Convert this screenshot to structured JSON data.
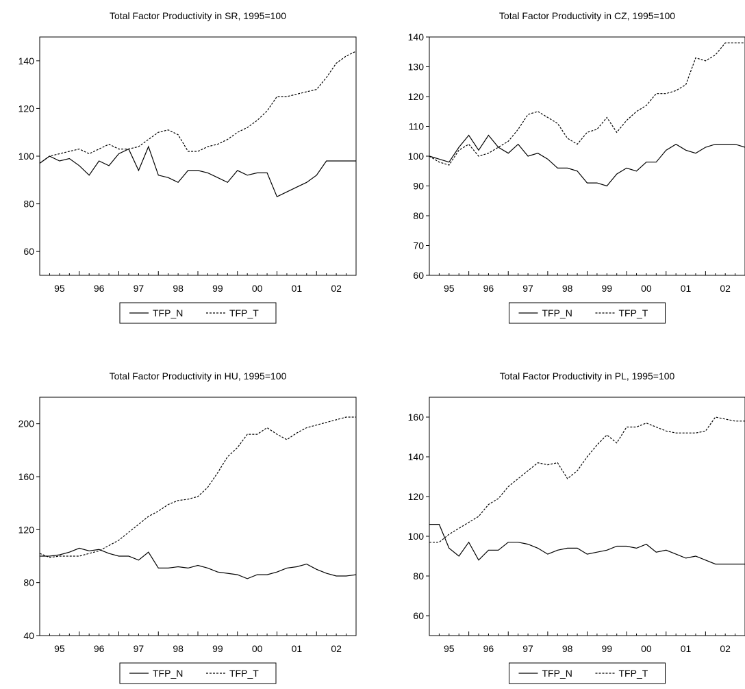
{
  "chart_data": [
    {
      "type": "line",
      "title": "Total Factor Productivity in SR, 1995=100",
      "xlabel": "",
      "ylabel": "",
      "x_range": [
        1995.0,
        2003.0
      ],
      "x_ticks": [
        {
          "label": "95",
          "at": 1995.5
        },
        {
          "label": "96",
          "at": 1996.5
        },
        {
          "label": "97",
          "at": 1997.5
        },
        {
          "label": "98",
          "at": 1998.5
        },
        {
          "label": "99",
          "at": 1999.5
        },
        {
          "label": "00",
          "at": 2000.5
        },
        {
          "label": "01",
          "at": 2001.5
        },
        {
          "label": "02",
          "at": 2002.5
        }
      ],
      "ylim": [
        50,
        150
      ],
      "y_ticks": [
        60,
        80,
        100,
        120,
        140
      ],
      "grid": false,
      "legend_position": "bottom",
      "series": [
        {
          "name": "TFP_N",
          "style": "solid",
          "x": [
            1995.0,
            1995.25,
            1995.5,
            1995.75,
            1996.0,
            1996.25,
            1996.5,
            1996.75,
            1997.0,
            1997.25,
            1997.5,
            1997.75,
            1998.0,
            1998.25,
            1998.5,
            1998.75,
            1999.0,
            1999.25,
            1999.5,
            1999.75,
            2000.0,
            2000.25,
            2000.5,
            2000.75,
            2001.0,
            2001.25,
            2001.5,
            2001.75,
            2002.0,
            2002.25,
            2002.5,
            2002.75,
            2003.0
          ],
          "y": [
            97,
            100,
            98,
            99,
            96,
            92,
            98,
            96,
            101,
            103,
            94,
            104,
            92,
            91,
            89,
            94,
            94,
            93,
            91,
            89,
            94,
            92,
            93,
            93,
            83,
            85,
            87,
            89,
            92,
            98,
            98,
            98,
            98
          ]
        },
        {
          "name": "TFP_T",
          "style": "dashed",
          "x": [
            1995.0,
            1995.25,
            1995.5,
            1995.75,
            1996.0,
            1996.25,
            1996.5,
            1996.75,
            1997.0,
            1997.25,
            1997.5,
            1997.75,
            1998.0,
            1998.25,
            1998.5,
            1998.75,
            1999.0,
            1999.25,
            1999.5,
            1999.75,
            2000.0,
            2000.25,
            2000.5,
            2000.75,
            2001.0,
            2001.25,
            2001.5,
            2001.75,
            2002.0,
            2002.25,
            2002.5,
            2002.75,
            2003.0
          ],
          "y": [
            97,
            100,
            101,
            102,
            103,
            101,
            103,
            105,
            103,
            103,
            104,
            107,
            110,
            111,
            109,
            102,
            102,
            104,
            105,
            107,
            110,
            112,
            115,
            119,
            125,
            125,
            126,
            127,
            128,
            133,
            139,
            142,
            144
          ]
        }
      ]
    },
    {
      "type": "line",
      "title": "Total Factor Productivity in CZ, 1995=100",
      "xlabel": "",
      "ylabel": "",
      "x_range": [
        1995.0,
        2003.0
      ],
      "x_ticks": [
        {
          "label": "95",
          "at": 1995.5
        },
        {
          "label": "96",
          "at": 1996.5
        },
        {
          "label": "97",
          "at": 1997.5
        },
        {
          "label": "98",
          "at": 1998.5
        },
        {
          "label": "99",
          "at": 1999.5
        },
        {
          "label": "00",
          "at": 2000.5
        },
        {
          "label": "01",
          "at": 2001.5
        },
        {
          "label": "02",
          "at": 2002.5
        }
      ],
      "ylim": [
        60,
        140
      ],
      "y_ticks": [
        60,
        70,
        80,
        90,
        100,
        110,
        120,
        130,
        140
      ],
      "grid": false,
      "legend_position": "bottom",
      "series": [
        {
          "name": "TFP_N",
          "style": "solid",
          "x": [
            1995.0,
            1995.25,
            1995.5,
            1995.75,
            1996.0,
            1996.25,
            1996.5,
            1996.75,
            1997.0,
            1997.25,
            1997.5,
            1997.75,
            1998.0,
            1998.25,
            1998.5,
            1998.75,
            1999.0,
            1999.25,
            1999.5,
            1999.75,
            2000.0,
            2000.25,
            2000.5,
            2000.75,
            2001.0,
            2001.25,
            2001.5,
            2001.75,
            2002.0,
            2002.25,
            2002.5,
            2002.75,
            2003.0
          ],
          "y": [
            100,
            99,
            98,
            103,
            107,
            102,
            107,
            103,
            101,
            104,
            100,
            101,
            99,
            96,
            96,
            95,
            91,
            91,
            90,
            94,
            96,
            95,
            98,
            98,
            102,
            104,
            102,
            101,
            103,
            104,
            104,
            104,
            103
          ]
        },
        {
          "name": "TFP_T",
          "style": "dashed",
          "x": [
            1995.0,
            1995.25,
            1995.5,
            1995.75,
            1996.0,
            1996.25,
            1996.5,
            1996.75,
            1997.0,
            1997.25,
            1997.5,
            1997.75,
            1998.0,
            1998.25,
            1998.5,
            1998.75,
            1999.0,
            1999.25,
            1999.5,
            1999.75,
            2000.0,
            2000.25,
            2000.5,
            2000.75,
            2001.0,
            2001.25,
            2001.5,
            2001.75,
            2002.0,
            2002.25,
            2002.5,
            2002.75,
            2003.0
          ],
          "y": [
            100,
            98,
            97,
            102,
            104,
            100,
            101,
            103,
            105,
            109,
            114,
            115,
            113,
            111,
            106,
            104,
            108,
            109,
            113,
            108,
            112,
            115,
            117,
            121,
            121,
            122,
            124,
            133,
            132,
            134,
            138,
            138,
            138
          ]
        }
      ]
    },
    {
      "type": "line",
      "title": "Total Factor Productivity in HU, 1995=100",
      "xlabel": "",
      "ylabel": "",
      "x_range": [
        1995.0,
        2003.0
      ],
      "x_ticks": [
        {
          "label": "95",
          "at": 1995.5
        },
        {
          "label": "96",
          "at": 1996.5
        },
        {
          "label": "97",
          "at": 1997.5
        },
        {
          "label": "98",
          "at": 1998.5
        },
        {
          "label": "99",
          "at": 1999.5
        },
        {
          "label": "00",
          "at": 2000.5
        },
        {
          "label": "01",
          "at": 2001.5
        },
        {
          "label": "02",
          "at": 2002.5
        }
      ],
      "ylim": [
        40,
        220
      ],
      "y_ticks": [
        40,
        80,
        120,
        160,
        200
      ],
      "grid": false,
      "legend_position": "bottom",
      "series": [
        {
          "name": "TFP_N",
          "style": "solid",
          "x": [
            1995.0,
            1995.25,
            1995.5,
            1995.75,
            1996.0,
            1996.25,
            1996.5,
            1996.75,
            1997.0,
            1997.25,
            1997.5,
            1997.75,
            1998.0,
            1998.25,
            1998.5,
            1998.75,
            1999.0,
            1999.25,
            1999.5,
            1999.75,
            2000.0,
            2000.25,
            2000.5,
            2000.75,
            2001.0,
            2001.25,
            2001.5,
            2001.75,
            2002.0,
            2002.25,
            2002.5,
            2002.75,
            2003.0
          ],
          "y": [
            100,
            100,
            101,
            103,
            106,
            104,
            105,
            102,
            100,
            100,
            97,
            103,
            91,
            91,
            92,
            91,
            93,
            91,
            88,
            87,
            86,
            83,
            86,
            86,
            88,
            91,
            92,
            94,
            90,
            87,
            85,
            85,
            86
          ]
        },
        {
          "name": "TFP_T",
          "style": "dashed",
          "x": [
            1995.0,
            1995.25,
            1995.5,
            1995.75,
            1996.0,
            1996.25,
            1996.5,
            1996.75,
            1997.0,
            1997.25,
            1997.5,
            1997.75,
            1998.0,
            1998.25,
            1998.5,
            1998.75,
            1999.0,
            1999.25,
            1999.5,
            1999.75,
            2000.0,
            2000.25,
            2000.5,
            2000.75,
            2001.0,
            2001.25,
            2001.5,
            2001.75,
            2002.0,
            2002.25,
            2002.5,
            2002.75,
            2003.0
          ],
          "y": [
            102,
            99,
            100,
            100,
            100,
            102,
            104,
            108,
            112,
            118,
            124,
            130,
            134,
            139,
            142,
            143,
            145,
            152,
            163,
            175,
            182,
            192,
            192,
            197,
            192,
            188,
            193,
            197,
            199,
            201,
            203,
            205,
            205
          ]
        }
      ]
    },
    {
      "type": "line",
      "title": "Total Factor Productivity in PL, 1995=100",
      "xlabel": "",
      "ylabel": "",
      "x_range": [
        1995.0,
        2003.0
      ],
      "x_ticks": [
        {
          "label": "95",
          "at": 1995.5
        },
        {
          "label": "96",
          "at": 1996.5
        },
        {
          "label": "97",
          "at": 1997.5
        },
        {
          "label": "98",
          "at": 1998.5
        },
        {
          "label": "99",
          "at": 1999.5
        },
        {
          "label": "00",
          "at": 2000.5
        },
        {
          "label": "01",
          "at": 2001.5
        },
        {
          "label": "02",
          "at": 2002.5
        }
      ],
      "ylim": [
        50,
        170
      ],
      "y_ticks": [
        60,
        80,
        100,
        120,
        140,
        160
      ],
      "grid": false,
      "legend_position": "bottom",
      "series": [
        {
          "name": "TFP_N",
          "style": "solid",
          "x": [
            1995.0,
            1995.25,
            1995.5,
            1995.75,
            1996.0,
            1996.25,
            1996.5,
            1996.75,
            1997.0,
            1997.25,
            1997.5,
            1997.75,
            1998.0,
            1998.25,
            1998.5,
            1998.75,
            1999.0,
            1999.25,
            1999.5,
            1999.75,
            2000.0,
            2000.25,
            2000.5,
            2000.75,
            2001.0,
            2001.25,
            2001.5,
            2001.75,
            2002.0,
            2002.25,
            2002.5,
            2002.75,
            2003.0
          ],
          "y": [
            106,
            106,
            94,
            90,
            97,
            88,
            93,
            93,
            97,
            97,
            96,
            94,
            91,
            93,
            94,
            94,
            91,
            92,
            93,
            95,
            95,
            94,
            96,
            92,
            93,
            91,
            89,
            90,
            88,
            86,
            86,
            86,
            86
          ]
        },
        {
          "name": "TFP_T",
          "style": "dashed",
          "x": [
            1995.0,
            1995.25,
            1995.5,
            1995.75,
            1996.0,
            1996.25,
            1996.5,
            1996.75,
            1997.0,
            1997.25,
            1997.5,
            1997.75,
            1998.0,
            1998.25,
            1998.5,
            1998.75,
            1999.0,
            1999.25,
            1999.5,
            1999.75,
            2000.0,
            2000.25,
            2000.5,
            2000.75,
            2001.0,
            2001.25,
            2001.5,
            2001.75,
            2002.0,
            2002.25,
            2002.5,
            2002.75,
            2003.0
          ],
          "y": [
            97,
            97,
            101,
            104,
            107,
            110,
            116,
            119,
            125,
            129,
            133,
            137,
            136,
            137,
            129,
            133,
            140,
            146,
            151,
            147,
            155,
            155,
            157,
            155,
            153,
            152,
            152,
            152,
            153,
            160,
            159,
            158,
            158
          ]
        }
      ]
    }
  ]
}
